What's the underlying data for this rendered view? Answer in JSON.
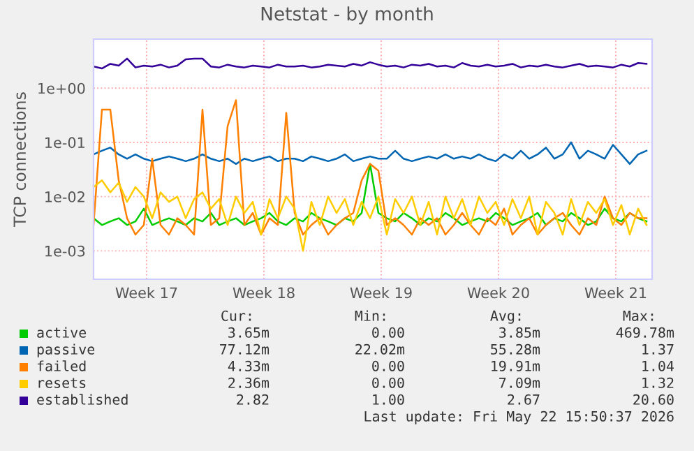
{
  "chart_data": {
    "type": "line",
    "title": "Netstat - by month",
    "ylabel": "TCP connections",
    "log": "y",
    "ylim": [
      0.0003,
      8
    ],
    "yticks": [
      {
        "value": 1,
        "label": "1e+00"
      },
      {
        "value": 0.1,
        "label": "1e-01"
      },
      {
        "value": 0.01,
        "label": "1e-02"
      },
      {
        "value": 0.001,
        "label": "1e-03"
      }
    ],
    "xlim": [
      "2026-04-19T08:00",
      "2026-05-22T16:00"
    ],
    "xticks": [
      {
        "value": "2026-04-22T12:00",
        "label": "Week 17"
      },
      {
        "value": "2026-04-29T12:00",
        "label": "Week 18"
      },
      {
        "value": "2026-05-06T12:00",
        "label": "Week 19"
      },
      {
        "value": "2026-05-13T12:00",
        "label": "Week 20"
      },
      {
        "value": "2026-05-20T12:00",
        "label": "Week 21"
      }
    ],
    "grid": true,
    "legend": "bottom",
    "x": [
      "2026-04-19T08:00",
      "2026-04-19T20:00",
      "2026-04-20T08:00",
      "2026-04-20T20:00",
      "2026-04-21T08:00",
      "2026-04-21T20:00",
      "2026-04-22T08:00",
      "2026-04-22T20:00",
      "2026-04-23T08:00",
      "2026-04-23T20:00",
      "2026-04-24T08:00",
      "2026-04-24T20:00",
      "2026-04-25T08:00",
      "2026-04-25T20:00",
      "2026-04-26T08:00",
      "2026-04-26T20:00",
      "2026-04-27T08:00",
      "2026-04-27T20:00",
      "2026-04-28T08:00",
      "2026-04-28T20:00",
      "2026-04-29T08:00",
      "2026-04-29T20:00",
      "2026-04-30T08:00",
      "2026-04-30T20:00",
      "2026-05-01T08:00",
      "2026-05-01T20:00",
      "2026-05-02T08:00",
      "2026-05-02T20:00",
      "2026-05-03T08:00",
      "2026-05-03T20:00",
      "2026-05-04T08:00",
      "2026-05-04T20:00",
      "2026-05-05T08:00",
      "2026-05-05T20:00",
      "2026-05-06T08:00",
      "2026-05-06T20:00",
      "2026-05-07T08:00",
      "2026-05-07T20:00",
      "2026-05-08T08:00",
      "2026-05-08T20:00",
      "2026-05-09T08:00",
      "2026-05-09T20:00",
      "2026-05-10T08:00",
      "2026-05-10T20:00",
      "2026-05-11T08:00",
      "2026-05-11T20:00",
      "2026-05-12T08:00",
      "2026-05-12T20:00",
      "2026-05-13T08:00",
      "2026-05-13T20:00",
      "2026-05-14T08:00",
      "2026-05-14T20:00",
      "2026-05-15T08:00",
      "2026-05-15T20:00",
      "2026-05-16T08:00",
      "2026-05-16T20:00",
      "2026-05-17T08:00",
      "2026-05-17T20:00",
      "2026-05-18T08:00",
      "2026-05-18T20:00",
      "2026-05-19T08:00",
      "2026-05-19T20:00",
      "2026-05-20T08:00",
      "2026-05-20T20:00",
      "2026-05-21T08:00",
      "2026-05-21T20:00",
      "2026-05-22T08:00"
    ],
    "series": [
      {
        "name": "active",
        "color": "#00cc00",
        "values": [
          0.004,
          0.003,
          0.0035,
          0.004,
          0.003,
          0.0035,
          0.006,
          0.003,
          0.0035,
          0.004,
          0.0035,
          0.003,
          0.004,
          0.0035,
          0.005,
          0.003,
          0.0035,
          0.004,
          0.003,
          0.0035,
          0.004,
          0.005,
          0.0035,
          0.003,
          0.004,
          0.0035,
          0.005,
          0.004,
          0.0035,
          0.003,
          0.004,
          0.0035,
          0.005,
          0.04,
          0.005,
          0.004,
          0.0035,
          0.005,
          0.004,
          0.003,
          0.004,
          0.0035,
          0.005,
          0.004,
          0.003,
          0.0035,
          0.004,
          0.0035,
          0.005,
          0.004,
          0.003,
          0.0035,
          0.004,
          0.005,
          0.003,
          0.004,
          0.0035,
          0.005,
          0.004,
          0.003,
          0.0035,
          0.006,
          0.004,
          0.0035,
          0.005,
          0.004,
          0.0035
        ]
      },
      {
        "name": "passive",
        "color": "#0066b3",
        "values": [
          0.06,
          0.07,
          0.08,
          0.06,
          0.05,
          0.06,
          0.05,
          0.045,
          0.05,
          0.055,
          0.05,
          0.045,
          0.05,
          0.06,
          0.05,
          0.045,
          0.05,
          0.04,
          0.05,
          0.045,
          0.05,
          0.055,
          0.045,
          0.05,
          0.05,
          0.045,
          0.055,
          0.05,
          0.045,
          0.05,
          0.06,
          0.045,
          0.05,
          0.055,
          0.05,
          0.05,
          0.07,
          0.05,
          0.045,
          0.05,
          0.055,
          0.05,
          0.06,
          0.05,
          0.055,
          0.05,
          0.06,
          0.05,
          0.045,
          0.06,
          0.05,
          0.07,
          0.05,
          0.06,
          0.08,
          0.05,
          0.06,
          0.1,
          0.05,
          0.07,
          0.06,
          0.05,
          0.09,
          0.06,
          0.04,
          0.06,
          0.07
        ]
      },
      {
        "name": "failed",
        "color": "#ff8000",
        "values": [
          0.003,
          0.4,
          0.4,
          0.02,
          0.004,
          0.002,
          0.003,
          0.05,
          0.003,
          0.002,
          0.004,
          0.003,
          0.002,
          0.4,
          0.003,
          0.004,
          0.2,
          0.6,
          0.003,
          0.005,
          0.002,
          0.004,
          0.003,
          0.35,
          0.005,
          0.002,
          0.003,
          0.004,
          0.002,
          0.003,
          0.004,
          0.005,
          0.02,
          0.04,
          0.03,
          0.003,
          0.004,
          0.003,
          0.002,
          0.004,
          0.003,
          0.004,
          0.002,
          0.003,
          0.005,
          0.003,
          0.002,
          0.004,
          0.003,
          0.006,
          0.002,
          0.003,
          0.004,
          0.002,
          0.003,
          0.004,
          0.005,
          0.003,
          0.002,
          0.004,
          0.003,
          0.01,
          0.004,
          0.003,
          0.005,
          0.004,
          0.004
        ]
      },
      {
        "name": "resets",
        "color": "#ffcc00",
        "values": [
          0.015,
          0.02,
          0.012,
          0.018,
          0.008,
          0.015,
          0.01,
          0.004,
          0.012,
          0.008,
          0.01,
          0.004,
          0.009,
          0.012,
          0.006,
          0.009,
          0.003,
          0.01,
          0.005,
          0.008,
          0.002,
          0.009,
          0.004,
          0.01,
          0.006,
          0.001,
          0.008,
          0.003,
          0.01,
          0.005,
          0.009,
          0.003,
          0.008,
          0.004,
          0.01,
          0.002,
          0.009,
          0.005,
          0.01,
          0.003,
          0.008,
          0.002,
          0.01,
          0.004,
          0.009,
          0.003,
          0.01,
          0.005,
          0.008,
          0.003,
          0.009,
          0.004,
          0.01,
          0.002,
          0.008,
          0.005,
          0.002,
          0.009,
          0.003,
          0.008,
          0.005,
          0.009,
          0.003,
          0.007,
          0.002,
          0.006,
          0.003
        ]
      },
      {
        "name": "established",
        "color": "#330099",
        "values": [
          2.5,
          2.3,
          2.8,
          2.6,
          3.5,
          2.4,
          2.6,
          2.5,
          2.7,
          2.4,
          2.6,
          3.4,
          3.5,
          3.5,
          2.5,
          2.4,
          2.7,
          2.5,
          2.4,
          2.6,
          2.5,
          2.4,
          2.7,
          2.5,
          2.5,
          2.6,
          2.4,
          2.5,
          2.7,
          2.6,
          2.5,
          2.8,
          2.6,
          3.0,
          2.7,
          2.5,
          2.6,
          2.4,
          2.7,
          2.6,
          2.8,
          2.5,
          2.6,
          2.4,
          2.9,
          2.6,
          2.5,
          2.7,
          2.5,
          2.6,
          2.8,
          2.4,
          2.6,
          2.5,
          2.7,
          2.5,
          2.4,
          2.6,
          2.8,
          2.5,
          2.6,
          2.5,
          2.4,
          2.7,
          2.5,
          2.9,
          2.8
        ]
      }
    ],
    "annotations": [
      "Cur:",
      "Min:",
      "Avg:",
      "Max:",
      "3.65m",
      "0.00",
      "3.85m",
      "469.78m",
      "77.12m",
      "22.02m",
      "55.28m",
      "1.37",
      "4.33m",
      "0.00",
      "19.91m",
      "1.04",
      "2.36m",
      "0.00",
      "7.09m",
      "1.32",
      "2.82",
      "1.00",
      "2.67",
      "20.60",
      "Last update: Fri May 22 15:50:37 2026"
    ]
  }
}
